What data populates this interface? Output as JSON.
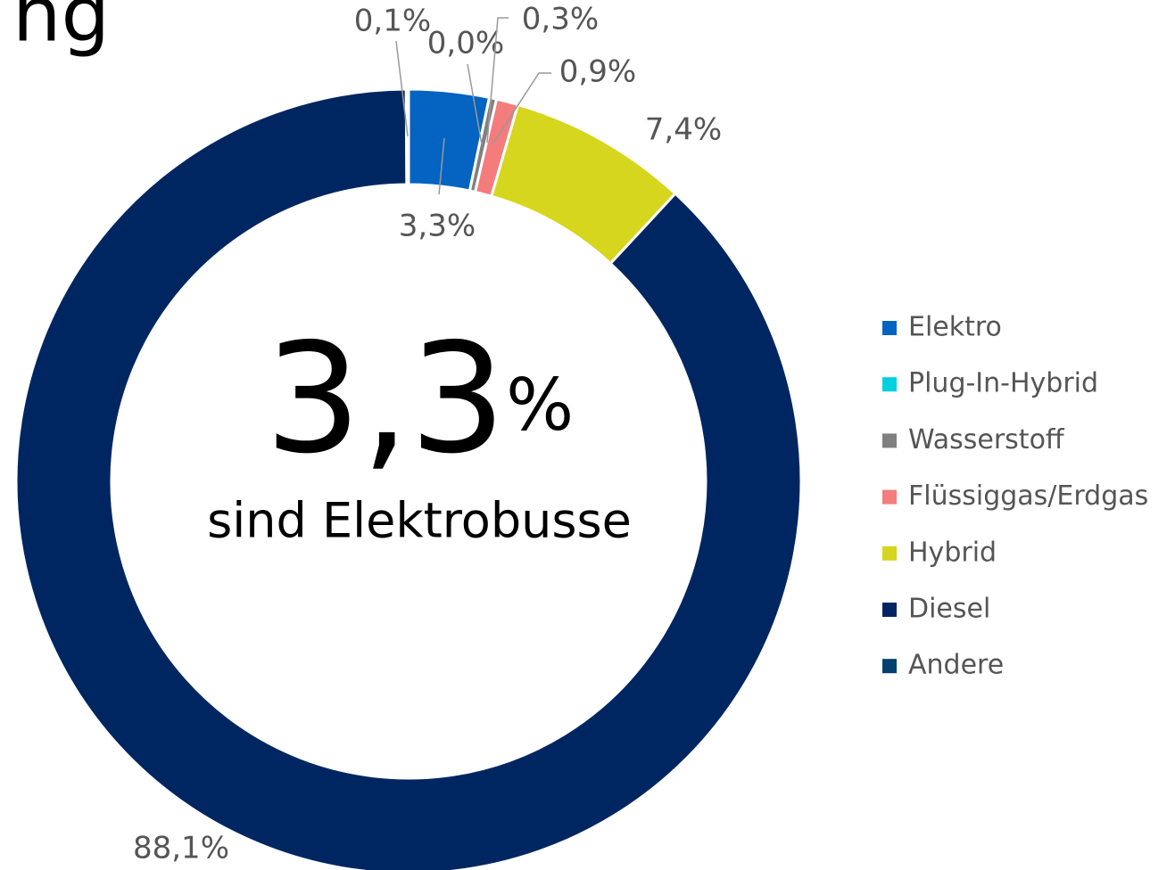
{
  "chart_data": {
    "type": "donut",
    "title": "ng",
    "center_value": "3,3",
    "center_unit": "%",
    "center_text": "sind Elektrobusse",
    "categories": [
      "Elektro",
      "Plug-In-Hybrid",
      "Wasserstoff",
      "Flüssiggas/Erdgas",
      "Hybrid",
      "Diesel",
      "Andere"
    ],
    "values": [
      3.3,
      0.0,
      0.3,
      0.9,
      7.4,
      88.1,
      0.1
    ],
    "value_labels": [
      "3,3%",
      "0,0%",
      "0,3%",
      "0,9%",
      "7,4%",
      "88,1%",
      "0,1%"
    ],
    "colors": [
      "#0563c1",
      "#00d0e0",
      "#808080",
      "#f47c7c",
      "#d6d61e",
      "#002661",
      "#003f6e"
    ],
    "legend": "right"
  }
}
